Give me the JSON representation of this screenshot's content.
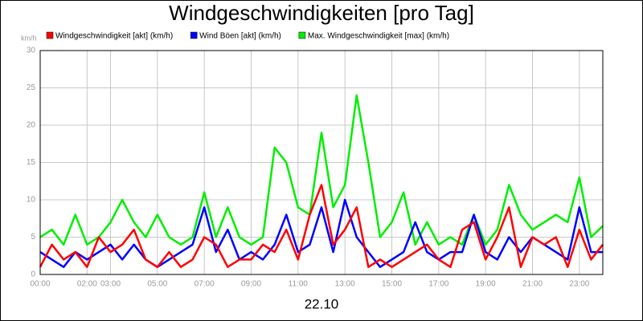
{
  "chart_data": {
    "type": "line",
    "title": "Windgeschwindigkeiten [pro Tag]",
    "xlabel": "22.10",
    "ylabel": "km/h",
    "x": [
      0,
      0.5,
      1,
      1.5,
      2,
      2.5,
      3,
      3.5,
      4,
      4.5,
      5,
      5.5,
      6,
      6.5,
      7,
      7.5,
      8,
      8.5,
      9,
      9.5,
      10,
      10.5,
      11,
      11.5,
      12,
      12.5,
      13,
      13.5,
      14,
      14.5,
      15,
      15.5,
      16,
      16.5,
      17,
      17.5,
      18,
      18.5,
      19,
      19.5,
      20,
      20.5,
      21,
      21.5,
      22,
      22.5,
      23,
      23.5,
      24
    ],
    "series": [
      {
        "name": "Windgeschwindigkeit [akt] (km/h)",
        "color": "#ff0000",
        "values": [
          1,
          4,
          2,
          3,
          1,
          5,
          3,
          4,
          6,
          2,
          1,
          3,
          1,
          2,
          5,
          4,
          1,
          2,
          2,
          4,
          3,
          6,
          2,
          8,
          12,
          4,
          6,
          9,
          1,
          2,
          1,
          2,
          3,
          4,
          2,
          1,
          6,
          7,
          2,
          5,
          9,
          1,
          5,
          4,
          5,
          1,
          6,
          2,
          4
        ]
      },
      {
        "name": "Wind Böen [akt] (km/h)",
        "color": "#0000ff",
        "values": [
          3,
          2,
          1,
          3,
          2,
          3,
          4,
          2,
          4,
          2,
          1,
          2,
          3,
          4,
          9,
          3,
          6,
          2,
          3,
          2,
          4,
          8,
          3,
          4,
          9,
          3,
          10,
          5,
          3,
          1,
          2,
          3,
          7,
          3,
          2,
          3,
          3,
          8,
          3,
          2,
          5,
          3,
          5,
          4,
          3,
          2,
          9,
          3,
          3
        ]
      },
      {
        "name": "Max. Windgeschwindigkeit [max] (km/h)",
        "color": "#00ee00",
        "values": [
          5,
          6,
          4,
          8,
          4,
          5,
          7,
          10,
          7,
          5,
          8,
          5,
          4,
          5,
          11,
          5,
          9,
          5,
          4,
          5,
          17,
          15,
          9,
          8,
          19,
          9,
          12,
          24,
          15,
          5,
          7,
          11,
          4,
          7,
          4,
          5,
          4,
          8,
          4,
          6,
          12,
          8,
          6,
          7,
          8,
          7,
          13,
          5,
          6.5
        ]
      }
    ],
    "xlim": [
      0,
      24
    ],
    "xticks": [
      {
        "value": 0,
        "label": "00:00"
      },
      {
        "value": 2,
        "label": "02:00"
      },
      {
        "value": 3,
        "label": "03:00"
      },
      {
        "value": 5,
        "label": "05:00"
      },
      {
        "value": 7,
        "label": "07:00"
      },
      {
        "value": 9,
        "label": "09:00"
      },
      {
        "value": 11,
        "label": "11:00"
      },
      {
        "value": 13,
        "label": "13:00"
      },
      {
        "value": 15,
        "label": "15:00"
      },
      {
        "value": 17,
        "label": "17:00"
      },
      {
        "value": 19,
        "label": "19:00"
      },
      {
        "value": 21,
        "label": "21:00"
      },
      {
        "value": 23,
        "label": "23:00"
      }
    ],
    "ylim": [
      0,
      30
    ],
    "yticks": [
      0,
      5,
      10,
      15,
      20,
      25,
      30
    ],
    "grid": true
  }
}
